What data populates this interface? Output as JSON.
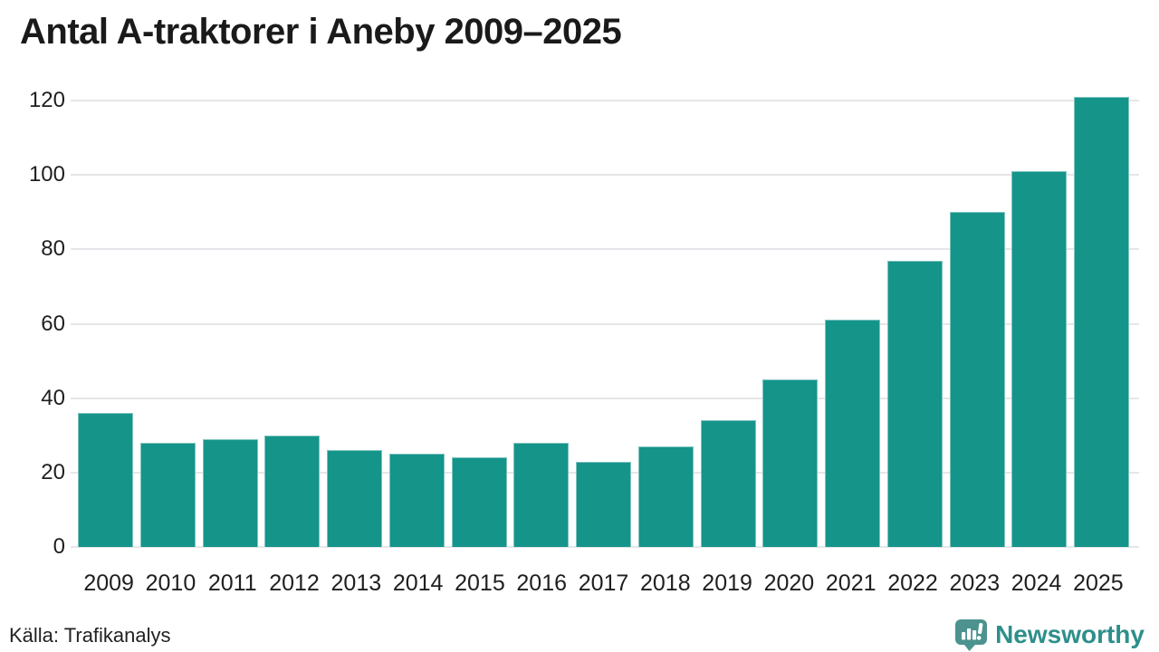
{
  "page": {
    "title": "Antal A-traktorer i Aneby 2009–2025",
    "source": "Källa: Trafikanalys",
    "brand_name": "Newsworthy"
  },
  "colors": {
    "background": "#ffffff",
    "bar": "#15948a",
    "gridline": "#e6e6ea",
    "title_text": "#1a1a1a",
    "axis_text": "#1f1f1f",
    "logo_bubble": "#4c938f",
    "logo_glyph": "#ffffff",
    "brand_text": "#2e8f8a"
  },
  "chart_data": {
    "type": "bar",
    "title": "Antal A-traktorer i Aneby 2009–2025",
    "categories": [
      "2009",
      "2010",
      "2011",
      "2012",
      "2013",
      "2014",
      "2015",
      "2016",
      "2017",
      "2018",
      "2019",
      "2020",
      "2021",
      "2022",
      "2023",
      "2024",
      "2025"
    ],
    "values": [
      36,
      28,
      29,
      30,
      26,
      25,
      24,
      28,
      23,
      27,
      34,
      45,
      61,
      77,
      90,
      101,
      121
    ],
    "xlabel": "",
    "ylabel": "",
    "ylim": [
      0,
      121
    ],
    "yticks": [
      0,
      20,
      40,
      60,
      80,
      100,
      120
    ],
    "grid": true,
    "legend": false,
    "bar_color": "#15948a",
    "source": "Källa: Trafikanalys"
  }
}
